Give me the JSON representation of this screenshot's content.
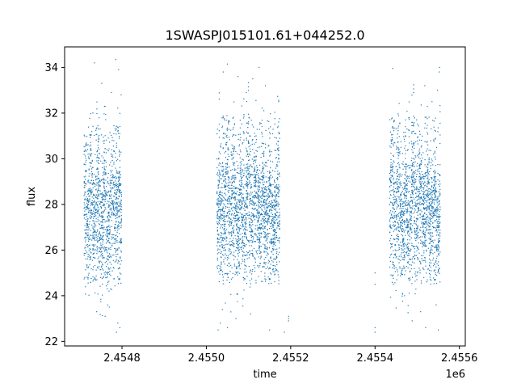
{
  "chart_data": {
    "type": "scatter",
    "title": "1SWASPJ015101.61+044252.0",
    "xlabel": "time",
    "ylabel": "flux",
    "x_offset_label": "1e6",
    "xlim": [
      2454664,
      2455614
    ],
    "ylim": [
      21.8,
      34.9
    ],
    "x_ticks": [
      2454800,
      2455000,
      2455200,
      2455400,
      2455600
    ],
    "x_tick_labels": [
      "2.4548",
      "2.4550",
      "2.4552",
      "2.4554",
      "2.4556"
    ],
    "y_ticks": [
      22,
      24,
      26,
      28,
      30,
      32,
      34
    ],
    "y_tick_labels": [
      "22",
      "24",
      "26",
      "28",
      "30",
      "32",
      "34"
    ],
    "grid": false,
    "marker_color": "#1f77b4",
    "segments": [
      {
        "x_start": 2454710,
        "x_end": 2454800,
        "core": [
          26.8,
          30.2
        ],
        "low": 24.5,
        "high": 31.5
      },
      {
        "x_start": 2455025,
        "x_end": 2455175,
        "core": [
          26.8,
          30.2
        ],
        "low": 24.5,
        "high": 31.8
      },
      {
        "x_start": 2455435,
        "x_end": 2455555,
        "core": [
          26.5,
          30.4
        ],
        "low": 24.5,
        "high": 31.8
      }
    ],
    "outliers": [
      {
        "x": 2454735,
        "y": 34.2
      },
      {
        "x": 2454752,
        "y": 33.3
      },
      {
        "x": 2454775,
        "y": 32.9
      },
      {
        "x": 2454785,
        "y": 34.35
      },
      {
        "x": 2454798,
        "y": 32.8
      },
      {
        "x": 2454792,
        "y": 33.9
      },
      {
        "x": 2454740,
        "y": 23.3
      },
      {
        "x": 2454760,
        "y": 23.1
      },
      {
        "x": 2454790,
        "y": 22.8
      },
      {
        "x": 2454787,
        "y": 22.4
      },
      {
        "x": 2454795,
        "y": 22.6
      },
      {
        "x": 2454770,
        "y": 23.5
      },
      {
        "x": 2455040,
        "y": 33.8
      },
      {
        "x": 2455075,
        "y": 33.6
      },
      {
        "x": 2455110,
        "y": 33.5
      },
      {
        "x": 2455125,
        "y": 34.0
      },
      {
        "x": 2455140,
        "y": 33.2
      },
      {
        "x": 2455095,
        "y": 32.9
      },
      {
        "x": 2455028,
        "y": 22.5
      },
      {
        "x": 2455033,
        "y": 22.8
      },
      {
        "x": 2455038,
        "y": 23.4
      },
      {
        "x": 2455050,
        "y": 22.6
      },
      {
        "x": 2455070,
        "y": 23.0
      },
      {
        "x": 2455105,
        "y": 23.2
      },
      {
        "x": 2455150,
        "y": 22.5
      },
      {
        "x": 2455185,
        "y": 22.4
      },
      {
        "x": 2455195,
        "y": 22.9
      },
      {
        "x": 2455195,
        "y": 23.0
      },
      {
        "x": 2455195,
        "y": 23.1
      },
      {
        "x": 2455400,
        "y": 22.4
      },
      {
        "x": 2455400,
        "y": 22.6
      },
      {
        "x": 2455400,
        "y": 24.5
      },
      {
        "x": 2455400,
        "y": 25.0
      },
      {
        "x": 2455518,
        "y": 33.2
      },
      {
        "x": 2455535,
        "y": 32.5
      },
      {
        "x": 2455552,
        "y": 33.8
      },
      {
        "x": 2455553,
        "y": 34.0
      },
      {
        "x": 2455548,
        "y": 33.0
      },
      {
        "x": 2455520,
        "y": 22.6
      },
      {
        "x": 2455550,
        "y": 22.5
      },
      {
        "x": 2455545,
        "y": 23.6
      },
      {
        "x": 2455508,
        "y": 23.3
      },
      {
        "x": 2455488,
        "y": 22.9
      },
      {
        "x": 2455470,
        "y": 24.0
      }
    ]
  }
}
